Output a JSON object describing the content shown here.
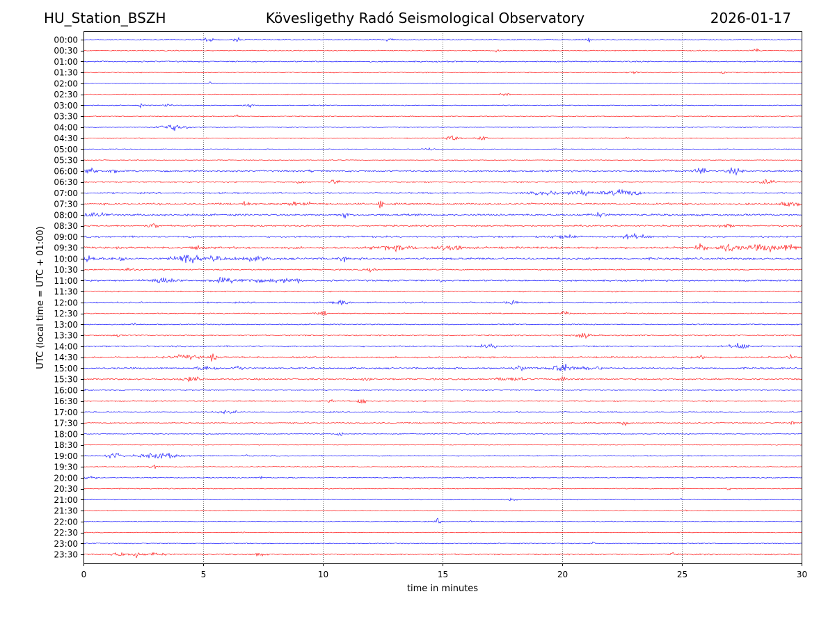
{
  "header": {
    "station": "HU_Station_BSZH",
    "observatory": "Kövesligethy Radó Seismological Observatory",
    "date": "2026-01-17"
  },
  "chart_data": {
    "type": "line",
    "title": "Kövesligethy Radó Seismological Observatory",
    "xlabel": "time in minutes",
    "ylabel": "UTC (local time = UTC + 01:00)",
    "xlim": [
      0,
      30
    ],
    "xticks": [
      "0",
      "5",
      "10",
      "15",
      "20",
      "25",
      "30"
    ],
    "xtick_values": [
      0,
      5,
      10,
      15,
      20,
      25,
      30
    ],
    "grid": "vertical dotted at each x tick",
    "colors": [
      "#0000ff",
      "#ff0000"
    ],
    "rows": [
      {
        "label": "00:00",
        "noise": 0.6,
        "events": [
          [
            5.2,
            0.2,
            3
          ],
          [
            6.4,
            0.15,
            2.5
          ],
          [
            12.8,
            0.15,
            2.5
          ],
          [
            21.1,
            0.1,
            2.5
          ]
        ]
      },
      {
        "label": "00:30",
        "noise": 0.6,
        "events": [
          [
            17.3,
            0.1,
            2
          ],
          [
            28.1,
            0.1,
            3
          ]
        ]
      },
      {
        "label": "01:00",
        "noise": 0.8,
        "events": []
      },
      {
        "label": "01:30",
        "noise": 0.6,
        "events": [
          [
            23.0,
            0.2,
            2
          ],
          [
            26.7,
            0.1,
            2.5
          ]
        ]
      },
      {
        "label": "02:00",
        "noise": 0.4,
        "events": [
          [
            5.3,
            0.08,
            3
          ]
        ]
      },
      {
        "label": "02:30",
        "noise": 0.5,
        "events": [
          [
            17.6,
            0.2,
            2
          ]
        ]
      },
      {
        "label": "03:00",
        "noise": 0.6,
        "events": [
          [
            3.5,
            0.2,
            2
          ],
          [
            6.9,
            0.2,
            2
          ],
          [
            2.4,
            0.1,
            2
          ]
        ]
      },
      {
        "label": "03:30",
        "noise": 0.5,
        "events": [
          [
            6.4,
            0.1,
            2
          ]
        ]
      },
      {
        "label": "04:00",
        "noise": 0.5,
        "events": [
          [
            3.7,
            0.6,
            4
          ]
        ]
      },
      {
        "label": "04:30",
        "noise": 0.6,
        "events": [
          [
            15.4,
            0.25,
            3
          ],
          [
            16.6,
            0.2,
            3.5
          ],
          [
            22.7,
            0.1,
            2
          ]
        ]
      },
      {
        "label": "05:00",
        "noise": 0.5,
        "events": [
          [
            14.4,
            0.2,
            2
          ]
        ]
      },
      {
        "label": "05:30",
        "noise": 0.5,
        "events": []
      },
      {
        "label": "06:00",
        "noise": 1.0,
        "events": [
          [
            0.3,
            0.3,
            3.5
          ],
          [
            1.3,
            0.2,
            3
          ],
          [
            9.5,
            0.1,
            2
          ],
          [
            25.8,
            0.25,
            4
          ],
          [
            27.2,
            0.3,
            3.5
          ]
        ]
      },
      {
        "label": "06:30",
        "noise": 0.8,
        "events": [
          [
            10.5,
            0.2,
            3.5
          ],
          [
            9.0,
            0.2,
            2
          ],
          [
            28.6,
            0.4,
            2.5
          ]
        ]
      },
      {
        "label": "07:00",
        "noise": 0.9,
        "events": [
          [
            19.5,
            0.8,
            2
          ],
          [
            21.0,
            0.8,
            2.5
          ],
          [
            22.6,
            0.6,
            3.5
          ]
        ]
      },
      {
        "label": "07:30",
        "noise": 1.1,
        "events": [
          [
            6.7,
            0.2,
            3
          ],
          [
            12.4,
            0.08,
            6
          ],
          [
            9.0,
            0.6,
            2
          ],
          [
            29.5,
            0.5,
            2.5
          ]
        ]
      },
      {
        "label": "08:00",
        "noise": 1.2,
        "events": [
          [
            0.5,
            0.5,
            2
          ],
          [
            10.9,
            0.2,
            3
          ],
          [
            21.5,
            0.3,
            2.5
          ]
        ]
      },
      {
        "label": "08:30",
        "noise": 1.0,
        "events": [
          [
            2.9,
            0.2,
            3
          ],
          [
            26.8,
            0.3,
            2
          ]
        ]
      },
      {
        "label": "09:00",
        "noise": 1.1,
        "events": [
          [
            23.0,
            0.5,
            3
          ],
          [
            20.0,
            0.6,
            2
          ]
        ]
      },
      {
        "label": "09:30",
        "noise": 1.3,
        "events": [
          [
            4.6,
            0.2,
            3.5
          ],
          [
            13.0,
            0.8,
            2.5
          ],
          [
            15.3,
            0.6,
            3
          ],
          [
            25.8,
            0.2,
            4
          ],
          [
            26.9,
            0.4,
            5
          ],
          [
            28.5,
            0.8,
            3.5
          ],
          [
            29.5,
            0.3,
            3
          ]
        ]
      },
      {
        "label": "10:00",
        "noise": 1.3,
        "events": [
          [
            0.2,
            0.3,
            4
          ],
          [
            1.5,
            0.3,
            3
          ],
          [
            4.3,
            0.5,
            6
          ],
          [
            5.5,
            0.2,
            3.5
          ],
          [
            7.0,
            0.8,
            2
          ],
          [
            10.9,
            0.2,
            2.5
          ]
        ]
      },
      {
        "label": "10:30",
        "noise": 0.8,
        "events": [
          [
            1.9,
            0.2,
            2
          ],
          [
            12.0,
            0.2,
            2
          ]
        ]
      },
      {
        "label": "11:00",
        "noise": 1.0,
        "events": [
          [
            3.3,
            0.6,
            3.5
          ],
          [
            5.8,
            0.5,
            3
          ],
          [
            6.9,
            0.5,
            2.5
          ],
          [
            8.2,
            0.5,
            2.5
          ],
          [
            9.0,
            0.1,
            5
          ],
          [
            14.9,
            0.05,
            3
          ]
        ]
      },
      {
        "label": "11:30",
        "noise": 0.7,
        "events": []
      },
      {
        "label": "12:00",
        "noise": 0.9,
        "events": [
          [
            10.8,
            0.3,
            3
          ],
          [
            17.9,
            0.2,
            2.5
          ]
        ]
      },
      {
        "label": "12:30",
        "noise": 0.7,
        "events": [
          [
            10.0,
            0.2,
            3
          ],
          [
            20.1,
            0.2,
            2.5
          ]
        ]
      },
      {
        "label": "13:00",
        "noise": 0.7,
        "events": [
          [
            2.1,
            0.1,
            2.5
          ]
        ]
      },
      {
        "label": "13:30",
        "noise": 0.8,
        "events": [
          [
            1.4,
            0.1,
            3
          ],
          [
            20.9,
            0.3,
            3
          ],
          [
            22.5,
            0.1,
            2
          ]
        ]
      },
      {
        "label": "14:00",
        "noise": 0.9,
        "events": [
          [
            27.4,
            0.4,
            3.5
          ],
          [
            17.0,
            0.5,
            2
          ]
        ]
      },
      {
        "label": "14:30",
        "noise": 1.0,
        "events": [
          [
            4.3,
            0.6,
            2.5
          ],
          [
            5.4,
            0.2,
            3.5
          ],
          [
            25.8,
            0.15,
            3.5
          ],
          [
            29.5,
            0.1,
            2.5
          ]
        ]
      },
      {
        "label": "15:00",
        "noise": 1.0,
        "events": [
          [
            5.2,
            0.4,
            3
          ],
          [
            6.5,
            0.2,
            3.5
          ],
          [
            18.3,
            0.4,
            2.5
          ],
          [
            20.0,
            0.4,
            5.5
          ],
          [
            21.2,
            0.4,
            2.5
          ]
        ]
      },
      {
        "label": "15:30",
        "noise": 1.0,
        "events": [
          [
            4.5,
            0.5,
            2.5
          ],
          [
            11.9,
            0.2,
            3
          ],
          [
            17.8,
            0.6,
            2
          ],
          [
            20.1,
            0.2,
            3.5
          ]
        ]
      },
      {
        "label": "16:00",
        "noise": 0.7,
        "events": [
          [
            0.1,
            0.05,
            4
          ]
        ]
      },
      {
        "label": "16:30",
        "noise": 0.8,
        "events": [
          [
            10.3,
            0.1,
            3
          ],
          [
            11.6,
            0.2,
            3.5
          ]
        ]
      },
      {
        "label": "17:00",
        "noise": 0.7,
        "events": [
          [
            6.0,
            0.4,
            2
          ]
        ]
      },
      {
        "label": "17:30",
        "noise": 0.7,
        "events": [
          [
            22.6,
            0.15,
            3
          ],
          [
            29.6,
            0.1,
            2.5
          ]
        ]
      },
      {
        "label": "18:00",
        "noise": 0.6,
        "events": [
          [
            10.7,
            0.1,
            4.5
          ]
        ]
      },
      {
        "label": "18:30",
        "noise": 0.5,
        "events": []
      },
      {
        "label": "19:00",
        "noise": 0.7,
        "events": [
          [
            1.3,
            0.4,
            3
          ],
          [
            3.2,
            0.8,
            3.5
          ],
          [
            6.8,
            0.05,
            2.5
          ]
        ]
      },
      {
        "label": "19:30",
        "noise": 0.6,
        "events": [
          [
            3.0,
            0.2,
            3
          ]
        ]
      },
      {
        "label": "20:00",
        "noise": 0.6,
        "events": [
          [
            0.2,
            0.3,
            2
          ],
          [
            7.4,
            0.05,
            2.5
          ]
        ]
      },
      {
        "label": "20:30",
        "noise": 0.6,
        "events": [
          [
            25.0,
            0.1,
            2
          ],
          [
            26.9,
            0.1,
            2
          ]
        ]
      },
      {
        "label": "21:00",
        "noise": 0.5,
        "events": [
          [
            17.9,
            0.15,
            2.5
          ],
          [
            25.0,
            0.05,
            2.5
          ]
        ]
      },
      {
        "label": "21:30",
        "noise": 0.5,
        "events": [
          [
            25.2,
            0.05,
            2
          ]
        ]
      },
      {
        "label": "22:00",
        "noise": 0.5,
        "events": [
          [
            14.8,
            0.1,
            4
          ],
          [
            16.2,
            0.05,
            2.5
          ]
        ]
      },
      {
        "label": "22:30",
        "noise": 0.5,
        "events": [
          [
            6.7,
            0.1,
            2
          ]
        ]
      },
      {
        "label": "23:00",
        "noise": 0.6,
        "events": [
          [
            21.3,
            0.05,
            4
          ]
        ]
      },
      {
        "label": "23:30",
        "noise": 0.8,
        "events": [
          [
            2.2,
            0.15,
            4
          ],
          [
            1.5,
            0.4,
            2
          ],
          [
            3.0,
            0.4,
            2
          ],
          [
            7.3,
            0.2,
            2.2
          ],
          [
            24.6,
            0.05,
            5
          ]
        ]
      }
    ]
  }
}
